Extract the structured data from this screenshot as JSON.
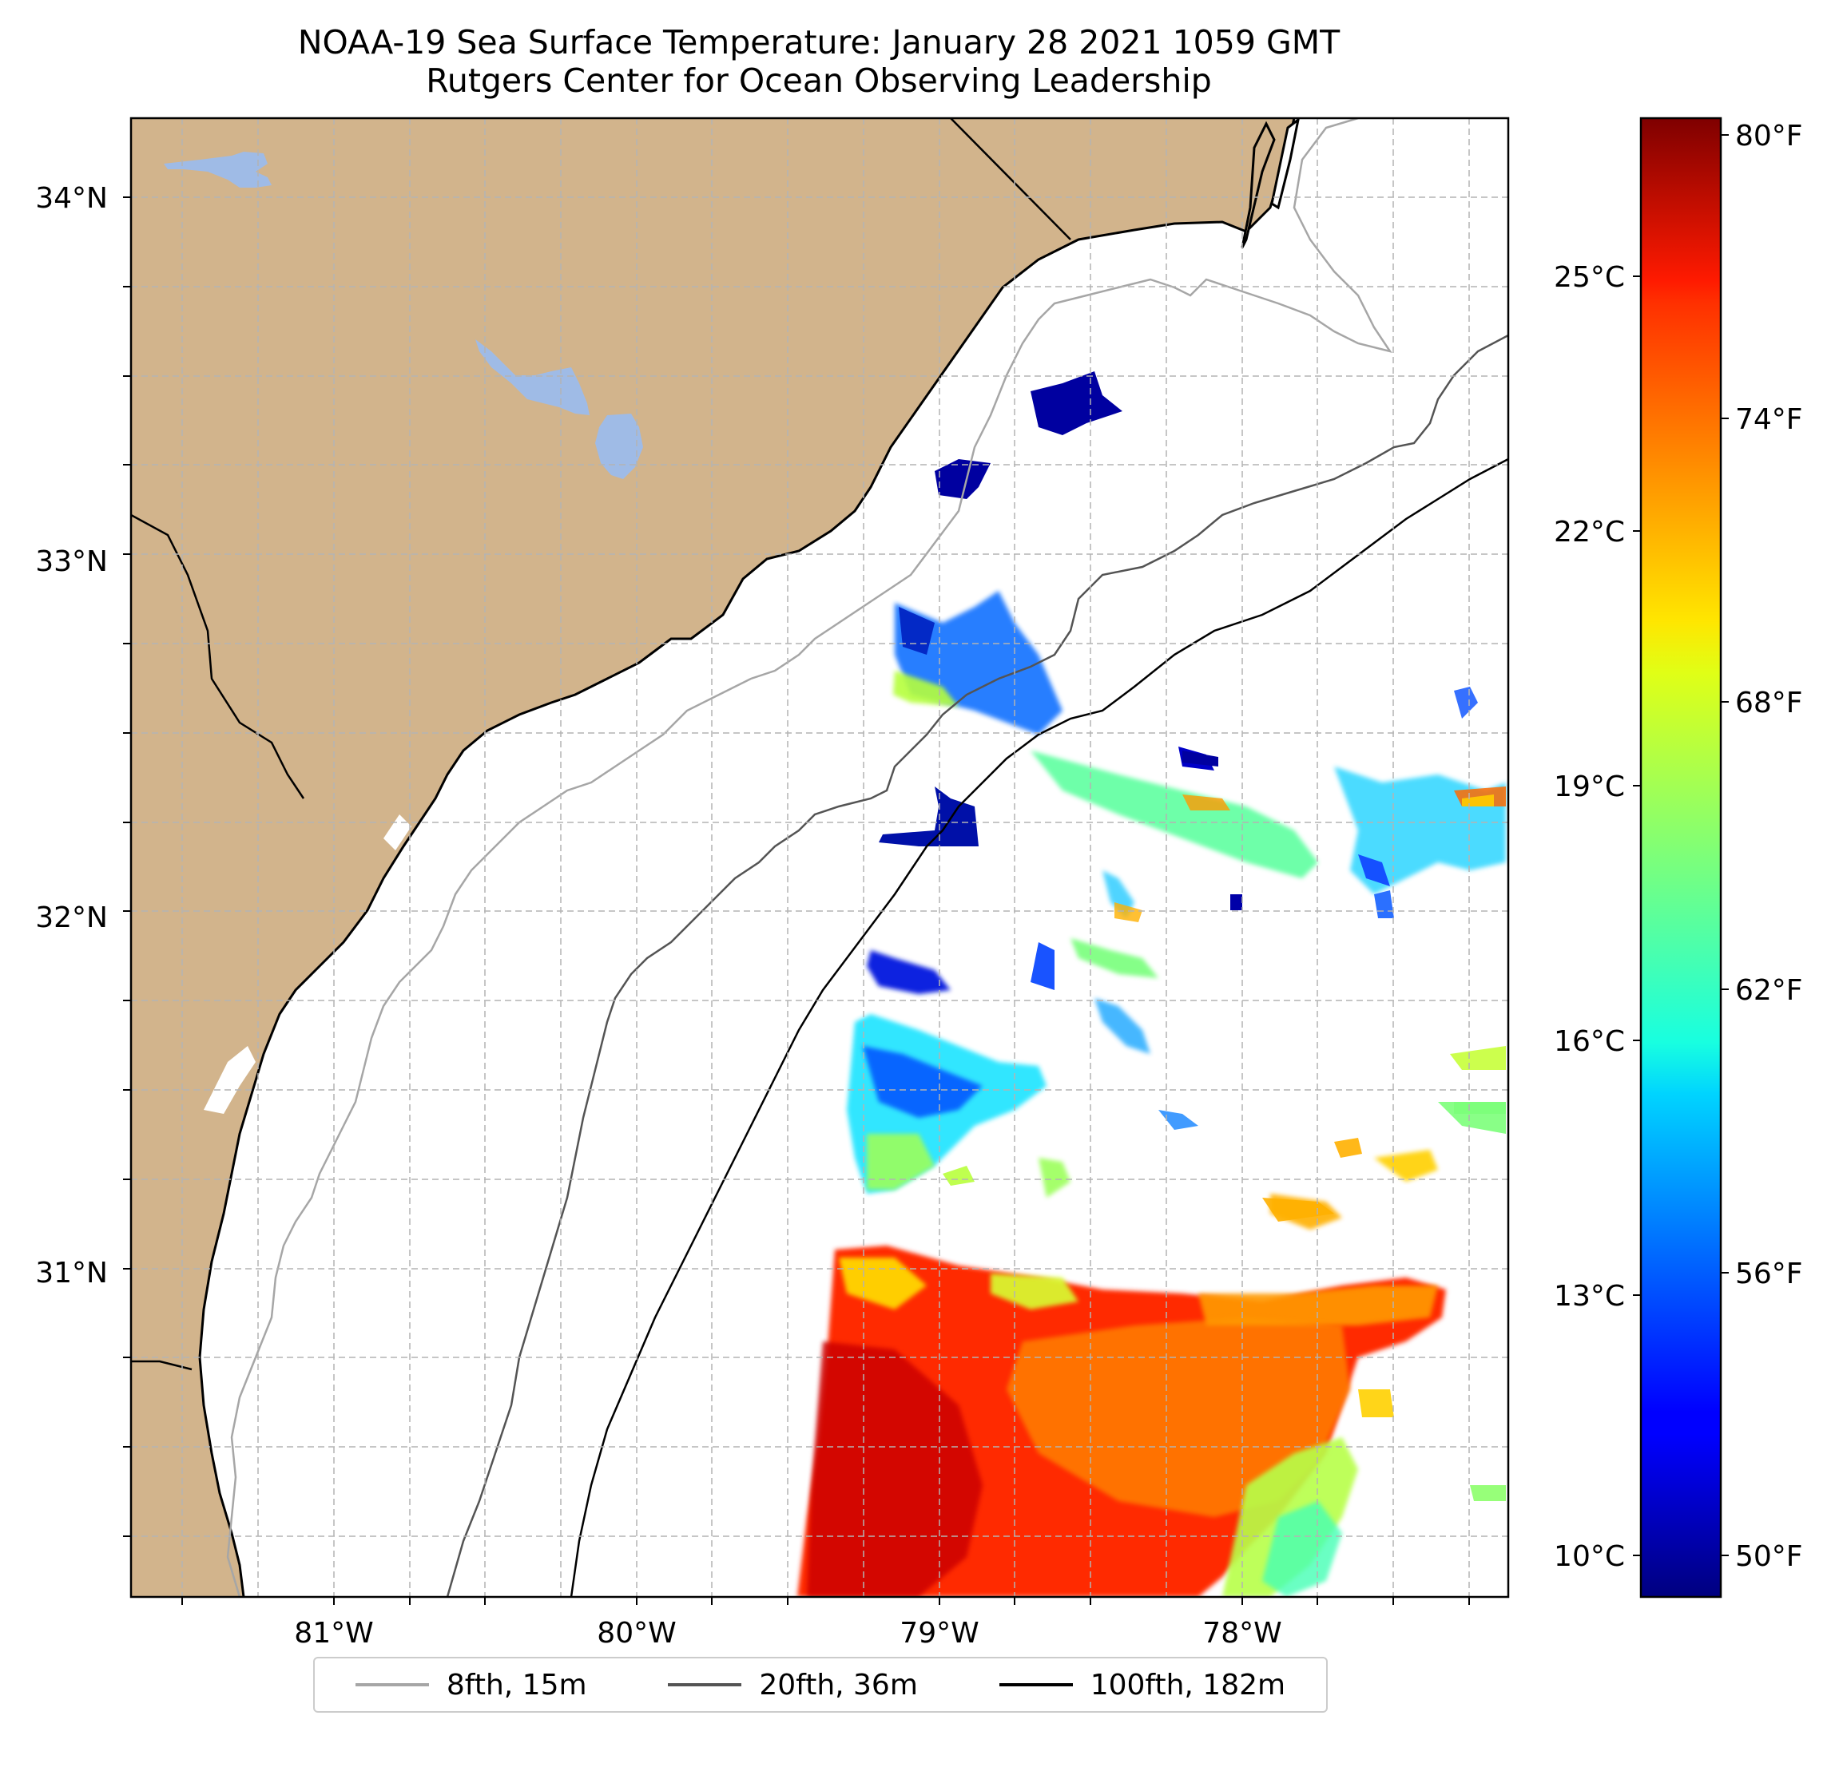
{
  "title": "NOAA-19 Sea Surface Temperature: January 28 2021 1059 GMT",
  "subtitle": "Rutgers Center for Ocean Observing Leadership",
  "map": {
    "lon_range": [
      -81.66,
      -77.14
    ],
    "lat_range": [
      30.08,
      34.22
    ],
    "lat_labels": [
      {
        "value": 34,
        "label": "34°N"
      },
      {
        "value": 33,
        "label": "33°N"
      },
      {
        "value": 32,
        "label": "32°N"
      },
      {
        "value": 31,
        "label": "31°N"
      }
    ],
    "lon_labels": [
      {
        "value": -81,
        "label": "81°W"
      },
      {
        "value": -80,
        "label": "80°W"
      },
      {
        "value": -79,
        "label": "79°W"
      },
      {
        "value": -78,
        "label": "78°W"
      }
    ],
    "gridlines": true,
    "colors": {
      "land": "#d2b48c",
      "lake": "#9fbbe6",
      "ocean": "#ffffff"
    }
  },
  "colorbar": {
    "colormap": "jet",
    "range_c": [
      9.5,
      27.1
    ],
    "celsius_ticks": [
      {
        "value": 25,
        "label": "25°C"
      },
      {
        "value": 22,
        "label": "22°C"
      },
      {
        "value": 19,
        "label": "19°C"
      },
      {
        "value": 16,
        "label": "16°C"
      },
      {
        "value": 13,
        "label": "13°C"
      },
      {
        "value": 10,
        "label": "10°C"
      }
    ],
    "fahrenheit_ticks": [
      {
        "value": 80,
        "label": "80°F"
      },
      {
        "value": 74,
        "label": "74°F"
      },
      {
        "value": 68,
        "label": "68°F"
      },
      {
        "value": 62,
        "label": "62°F"
      },
      {
        "value": 56,
        "label": "56°F"
      },
      {
        "value": 50,
        "label": "50°F"
      }
    ]
  },
  "legend": {
    "placement": "bottom-center",
    "items": [
      {
        "label": "8fth, 15m",
        "color": "#a6a6a6"
      },
      {
        "label": "20fth, 36m",
        "color": "#545454"
      },
      {
        "label": "100fth, 182m",
        "color": "#000000"
      }
    ]
  }
}
